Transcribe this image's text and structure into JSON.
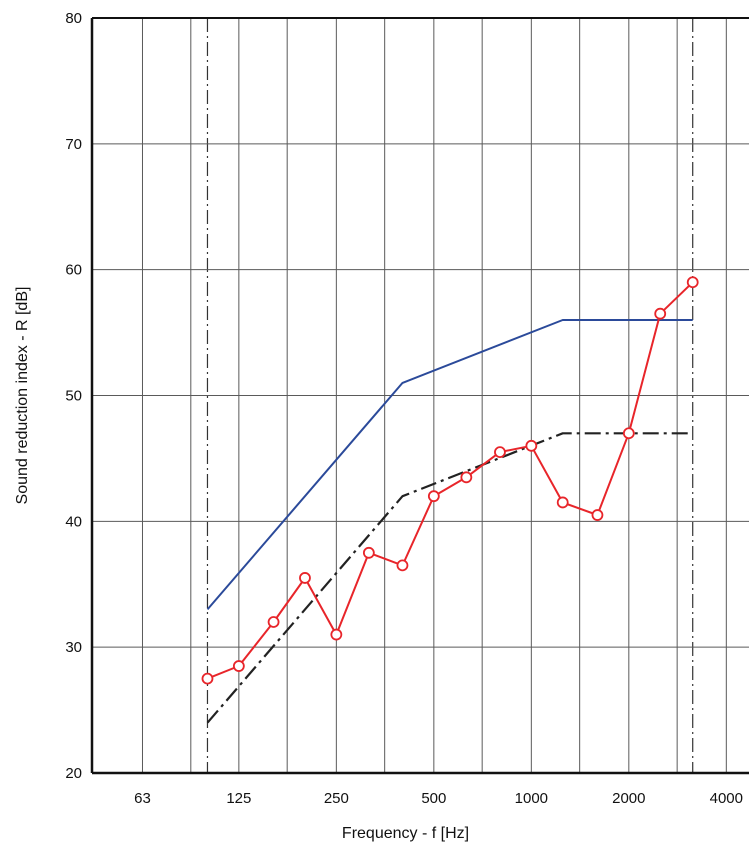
{
  "chart_data": {
    "type": "line",
    "title": "",
    "xlabel": "Frequency - f [Hz]",
    "ylabel": "Sound reduction index - R [dB]",
    "x_scale": "log",
    "xlim": [
      44,
      4700
    ],
    "ylim": [
      20,
      80
    ],
    "x_tick_values": [
      63,
      125,
      250,
      500,
      1000,
      2000,
      4000
    ],
    "x_tick_labels": [
      "63",
      "125",
      "250",
      "500",
      "1000",
      "2000",
      "4000"
    ],
    "y_ticks": [
      20,
      30,
      40,
      50,
      60,
      70,
      80
    ],
    "grid": true,
    "series": [
      {
        "color": "#2b4a9a",
        "style": "solid",
        "markers": false,
        "x": [
          100,
          400,
          1250,
          3150
        ],
        "y": [
          33,
          51,
          56,
          56
        ]
      },
      {
        "color": "#222222",
        "style": "dash-dot",
        "markers": false,
        "x": [
          100,
          400,
          1250,
          3150
        ],
        "y": [
          24,
          42,
          47,
          47
        ]
      },
      {
        "color": "#e8252a",
        "style": "solid",
        "markers": true,
        "marker": "open-circle",
        "x": [
          100,
          125,
          160,
          200,
          250,
          315,
          400,
          500,
          630,
          800,
          1000,
          1250,
          1600,
          2000,
          2500,
          3150
        ],
        "y": [
          27.5,
          28.5,
          32,
          35.5,
          31,
          37.5,
          36.5,
          42,
          43.5,
          45.5,
          46,
          41.5,
          40.5,
          47,
          56.5,
          59
        ]
      }
    ]
  }
}
